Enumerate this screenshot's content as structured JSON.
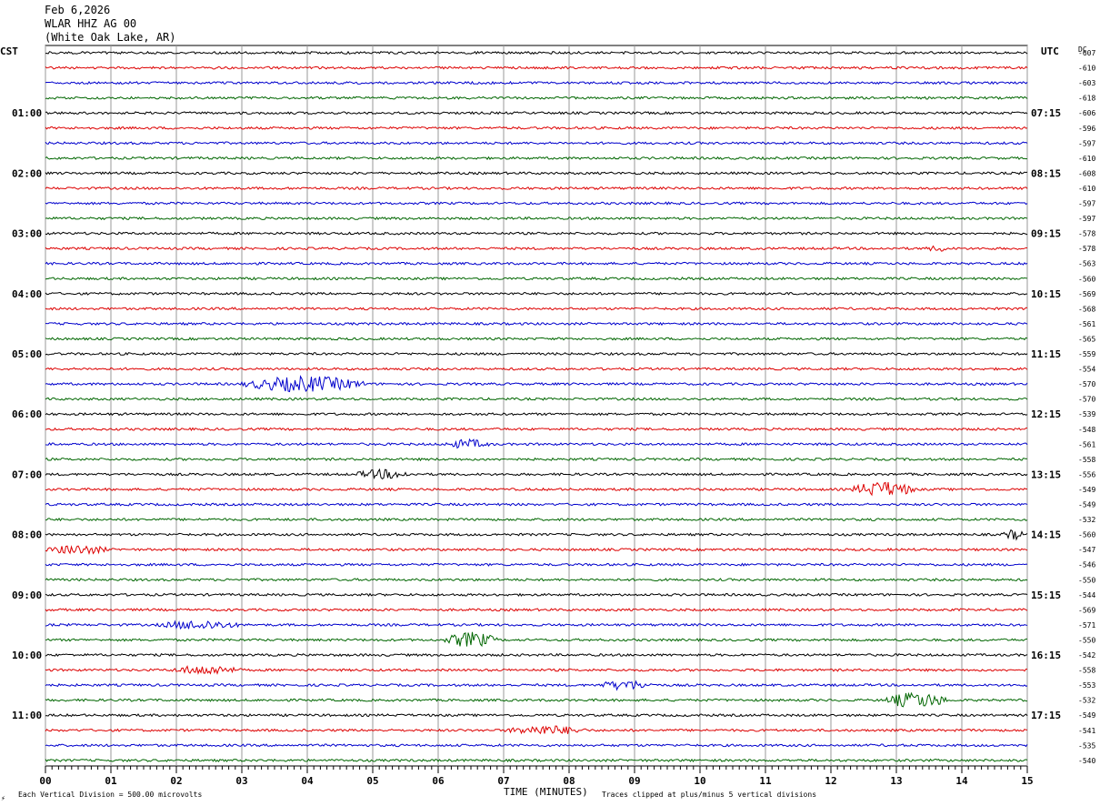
{
  "header": {
    "date": "Feb 6,2026",
    "station": "WLAR HHZ AG 00",
    "location": "(White Oak Lake, AR)"
  },
  "axes": {
    "left_timezone": "CST",
    "right_timezone": "UTC",
    "dc_label": "DC",
    "x_title": "TIME (MINUTES)"
  },
  "footer": {
    "scale_note": "Each Vertical Division =  500.00 microvolts",
    "clip_note": "Traces clipped at plus/minus 5 vertical divisions",
    "corner_mark": "⚡"
  },
  "chart_data": {
    "type": "line",
    "title": "Feb 6,2026",
    "xlabel": "TIME (MINUTES)",
    "ylabel": "",
    "xlim": [
      0,
      15
    ],
    "x_ticks": [
      "00",
      "01",
      "02",
      "03",
      "04",
      "05",
      "06",
      "07",
      "08",
      "09",
      "10",
      "11",
      "12",
      "13",
      "14",
      "15"
    ],
    "grid": true,
    "trace_colors": [
      "#000000",
      "#dd0000",
      "#0000cc",
      "#006600"
    ],
    "trace_count": 48,
    "left_hour_labels": [
      "01:00",
      "02:00",
      "03:00",
      "04:00",
      "05:00",
      "06:00",
      "07:00",
      "08:00",
      "09:00",
      "10:00",
      "11:00"
    ],
    "right_hour_labels": [
      "07:15",
      "08:15",
      "09:15",
      "10:15",
      "11:15",
      "12:15",
      "13:15",
      "14:15",
      "15:15",
      "16:15",
      "17:15"
    ],
    "dc_offsets": [
      -607,
      -610,
      -603,
      -618,
      -606,
      -596,
      -597,
      -610,
      -608,
      -610,
      -597,
      -597,
      -578,
      -578,
      -563,
      -560,
      -569,
      -568,
      -561,
      -565,
      -559,
      -554,
      -570,
      -570,
      -539,
      -548,
      -561,
      -558,
      -556,
      -549,
      -549,
      -532,
      -560,
      -547,
      -546,
      -550,
      -544,
      -569,
      -571,
      -550,
      -542,
      -558,
      -553,
      -532,
      -549,
      -541,
      -535,
      -540
    ],
    "events": [
      {
        "trace": 22,
        "start_min": 3.0,
        "end_min": 4.9,
        "amplitude": "high"
      },
      {
        "trace": 26,
        "start_min": 6.1,
        "end_min": 6.8,
        "amplitude": "medium"
      },
      {
        "trace": 28,
        "start_min": 4.7,
        "end_min": 5.6,
        "amplitude": "medium"
      },
      {
        "trace": 29,
        "start_min": 12.3,
        "end_min": 13.3,
        "amplitude": "high"
      },
      {
        "trace": 33,
        "start_min": 0.0,
        "end_min": 1.0,
        "amplitude": "medium"
      },
      {
        "trace": 38,
        "start_min": 1.7,
        "end_min": 3.0,
        "amplitude": "medium"
      },
      {
        "trace": 39,
        "start_min": 6.1,
        "end_min": 6.9,
        "amplitude": "high"
      },
      {
        "trace": 41,
        "start_min": 1.9,
        "end_min": 3.0,
        "amplitude": "medium"
      },
      {
        "trace": 42,
        "start_min": 8.4,
        "end_min": 9.3,
        "amplitude": "medium"
      },
      {
        "trace": 43,
        "start_min": 12.8,
        "end_min": 13.8,
        "amplitude": "high"
      },
      {
        "trace": 45,
        "start_min": 7.0,
        "end_min": 8.3,
        "amplitude": "medium"
      },
      {
        "trace": 13,
        "start_min": 13.4,
        "end_min": 13.9,
        "amplitude": "low"
      },
      {
        "trace": 32,
        "start_min": 14.6,
        "end_min": 15.0,
        "amplitude": "medium"
      }
    ]
  }
}
